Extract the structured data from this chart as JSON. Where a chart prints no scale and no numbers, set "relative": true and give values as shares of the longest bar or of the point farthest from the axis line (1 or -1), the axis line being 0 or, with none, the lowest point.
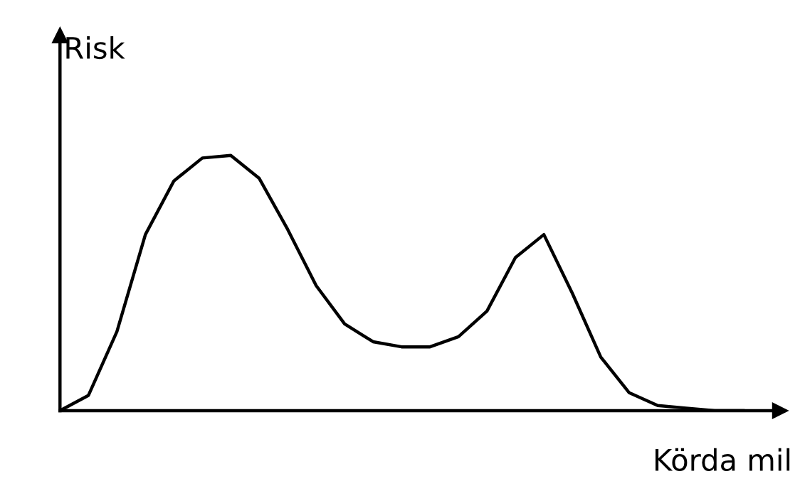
{
  "chart_data": {
    "type": "line",
    "relative": true,
    "xlabel": "Körda mil",
    "ylabel": "Risk",
    "color": "#000000",
    "marker": "none",
    "line_style": "solid",
    "legend": false,
    "categories": [
      null,
      null,
      null,
      null,
      null,
      null,
      null,
      null,
      null,
      null,
      null,
      null,
      null,
      null,
      null,
      null,
      null,
      null,
      null,
      null,
      null,
      null,
      null,
      null,
      null
    ],
    "values": [
      0,
      0.06,
      0.31,
      0.69,
      0.9,
      0.99,
      1,
      0.91,
      0.71,
      0.49,
      0.34,
      0.27,
      0.25,
      0.25,
      0.29,
      0.39,
      0.6,
      0.69,
      0.46,
      0.21,
      0.07,
      0.02,
      0.01,
      0,
      0
    ]
  }
}
